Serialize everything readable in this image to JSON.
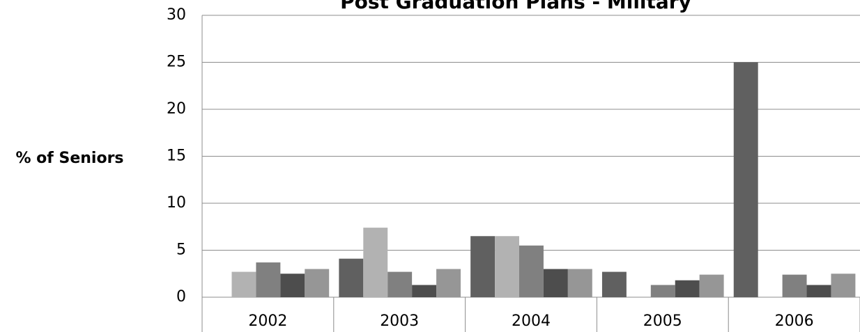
{
  "chart_data": {
    "type": "bar",
    "title": "Post Graduation Plans - Military",
    "y_label": "% of Seniors",
    "categories": [
      "2002",
      "2003",
      "2004",
      "2005",
      "2006"
    ],
    "series": [
      {
        "color": "#606060",
        "values": [
          0,
          4.1,
          6.5,
          2.7,
          25
        ]
      },
      {
        "color": "#b2b2b2",
        "values": [
          2.7,
          7.4,
          6.5,
          0,
          0
        ]
      },
      {
        "color": "#808080",
        "values": [
          3.7,
          2.7,
          5.5,
          1.3,
          2.4
        ]
      },
      {
        "color": "#4d4d4d",
        "values": [
          2.5,
          1.3,
          3.0,
          1.8,
          1.3
        ]
      },
      {
        "color": "#969696",
        "values": [
          3.0,
          3.0,
          3.0,
          2.4,
          2.5
        ]
      }
    ],
    "ylim": [
      0,
      30
    ],
    "yticks": [
      0,
      5,
      10,
      15,
      20,
      25,
      30
    ],
    "grid": true
  }
}
